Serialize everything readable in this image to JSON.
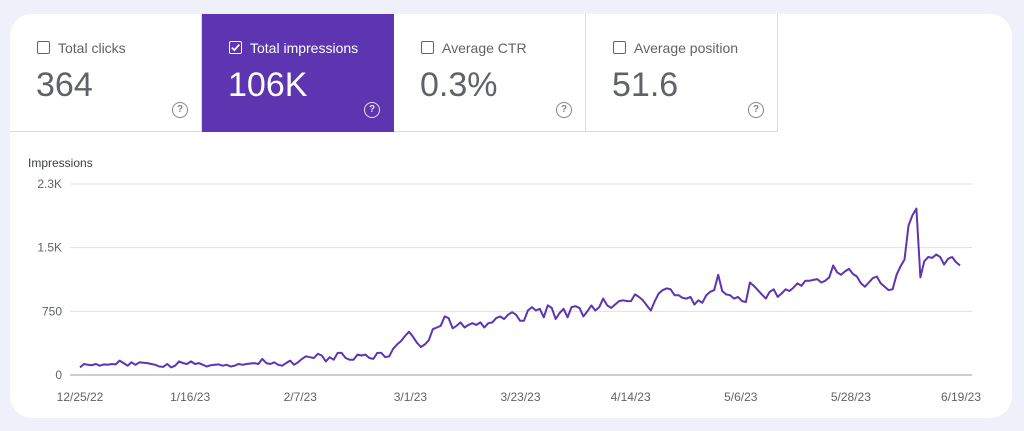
{
  "metrics": [
    {
      "label": "Total clicks",
      "value": "364",
      "checked": false,
      "help": "?"
    },
    {
      "label": "Total impressions",
      "value": "106K",
      "checked": true,
      "help": "?"
    },
    {
      "label": "Average CTR",
      "value": "0.3%",
      "checked": false,
      "help": "?"
    },
    {
      "label": "Average position",
      "value": "51.6",
      "checked": false,
      "help": "?"
    }
  ],
  "colors": {
    "accent": "#5e35b1",
    "line": "#5e35b1",
    "grid": "#e0e0e0",
    "text": "#5f6368"
  },
  "chart_data": {
    "type": "line",
    "ylabel": "Impressions",
    "ylim": [
      0,
      2250
    ],
    "y_ticks": [
      0,
      750,
      1500,
      2250
    ],
    "y_tick_labels": [
      "0",
      "750",
      "1.5K",
      "2.3K"
    ],
    "x_tick_labels": [
      "12/25/22",
      "1/16/23",
      "2/7/23",
      "3/1/23",
      "3/23/23",
      "4/14/23",
      "5/6/23",
      "5/28/23",
      "6/19/23"
    ],
    "grid": true,
    "series": [
      {
        "values": [
          90,
          130,
          120,
          115,
          130,
          110,
          125,
          120,
          130,
          125,
          170,
          140,
          110,
          150,
          120,
          150,
          145,
          140,
          130,
          120,
          100,
          95,
          130,
          90,
          110,
          160,
          140,
          130,
          160,
          130,
          140,
          120,
          100,
          115,
          120,
          125,
          110,
          120,
          100,
          110,
          130,
          120,
          130,
          135,
          140,
          130,
          190,
          140,
          130,
          150,
          120,
          110,
          140,
          170,
          120,
          150,
          190,
          220,
          210,
          200,
          250,
          230,
          160,
          210,
          180,
          260,
          260,
          200,
          180,
          180,
          240,
          230,
          240,
          200,
          190,
          260,
          260,
          210,
          220,
          310,
          360,
          400,
          460,
          510,
          450,
          380,
          330,
          360,
          410,
          540,
          560,
          580,
          690,
          670,
          550,
          580,
          620,
          560,
          590,
          610,
          590,
          620,
          560,
          610,
          620,
          670,
          690,
          660,
          710,
          740,
          710,
          640,
          640,
          760,
          800,
          760,
          780,
          680,
          820,
          790,
          660,
          730,
          780,
          680,
          800,
          810,
          790,
          690,
          750,
          820,
          760,
          800,
          900,
          820,
          790,
          830,
          870,
          880,
          870,
          870,
          950,
          920,
          880,
          820,
          760,
          870,
          960,
          1000,
          1020,
          1010,
          940,
          940,
          910,
          900,
          920,
          830,
          880,
          850,
          940,
          980,
          1000,
          1180,
          990,
          950,
          940,
          900,
          920,
          870,
          860,
          1090,
          1050,
          1000,
          950,
          900,
          980,
          1010,
          920,
          960,
          1010,
          990,
          1030,
          1080,
          1050,
          1110,
          1110,
          1120,
          1130,
          1090,
          1110,
          1150,
          1290,
          1210,
          1180,
          1220,
          1250,
          1190,
          1160,
          1080,
          1040,
          1090,
          1140,
          1160,
          1080,
          1040,
          1000,
          1010,
          1180,
          1280,
          1360,
          1760,
          1880,
          1960,
          1150,
          1340,
          1390,
          1380,
          1420,
          1390,
          1300,
          1370,
          1390,
          1330,
          1290
        ]
      }
    ]
  }
}
